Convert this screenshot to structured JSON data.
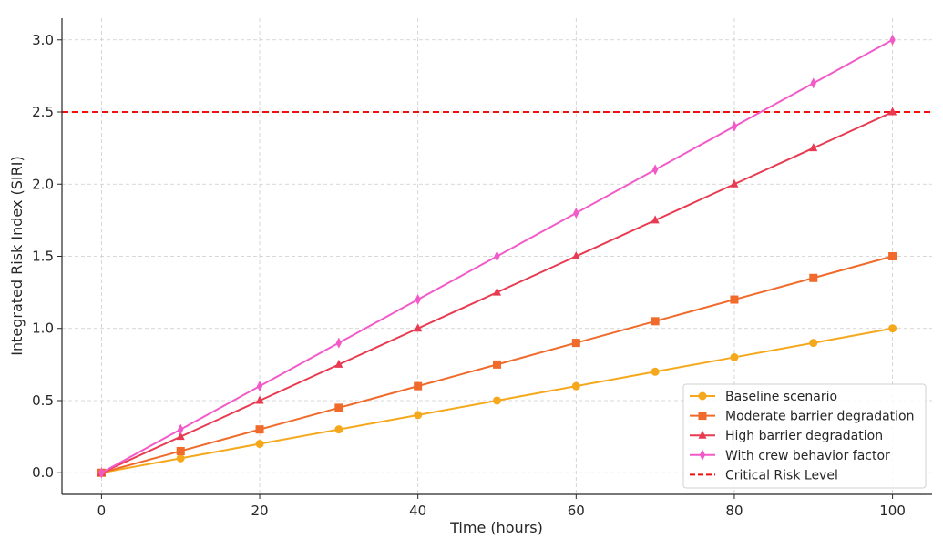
{
  "chart_data": {
    "type": "line",
    "title": "",
    "xlabel": "Time (hours)",
    "ylabel": "Integrated Risk Index (SIRI)",
    "xlim": [
      -5,
      105
    ],
    "ylim": [
      -0.15,
      3.15
    ],
    "xticks": [
      0,
      20,
      40,
      60,
      80,
      100
    ],
    "xtick_labels": [
      "0",
      "20",
      "40",
      "60",
      "80",
      "100"
    ],
    "yticks": [
      0.0,
      0.5,
      1.0,
      1.5,
      2.0,
      2.5,
      3.0
    ],
    "ytick_labels": [
      "0.0",
      "0.5",
      "1.0",
      "1.5",
      "2.0",
      "2.5",
      "3.0"
    ],
    "grid": true,
    "legend_placement": "lower-right",
    "x": [
      0,
      10,
      20,
      30,
      40,
      50,
      60,
      70,
      80,
      90,
      100
    ],
    "series": [
      {
        "name": "Baseline scenario",
        "color": "#f5a81c",
        "marker": "circle",
        "values": [
          0,
          0.1,
          0.2,
          0.3,
          0.4,
          0.5,
          0.6,
          0.7,
          0.8,
          0.9,
          1.0
        ]
      },
      {
        "name": "Moderate barrier degradation",
        "color": "#f06a2b",
        "marker": "square",
        "values": [
          0,
          0.15,
          0.3,
          0.45,
          0.6,
          0.75,
          0.9,
          1.05,
          1.2,
          1.35,
          1.5
        ]
      },
      {
        "name": "High barrier degradation",
        "color": "#e83a50",
        "marker": "triangle",
        "values": [
          0,
          0.25,
          0.5,
          0.75,
          1.0,
          1.25,
          1.5,
          1.75,
          2.0,
          2.25,
          2.5
        ]
      },
      {
        "name": "With crew behavior factor",
        "color": "#f25ac8",
        "marker": "diamond",
        "values": [
          0,
          0.3,
          0.6,
          0.9,
          1.2,
          1.5,
          1.8,
          2.1,
          2.4,
          2.7,
          3.0
        ]
      }
    ],
    "hlines": [
      {
        "name": "Critical Risk Level",
        "y": 2.5,
        "color": "#ee1111",
        "style": "dashed"
      }
    ]
  }
}
